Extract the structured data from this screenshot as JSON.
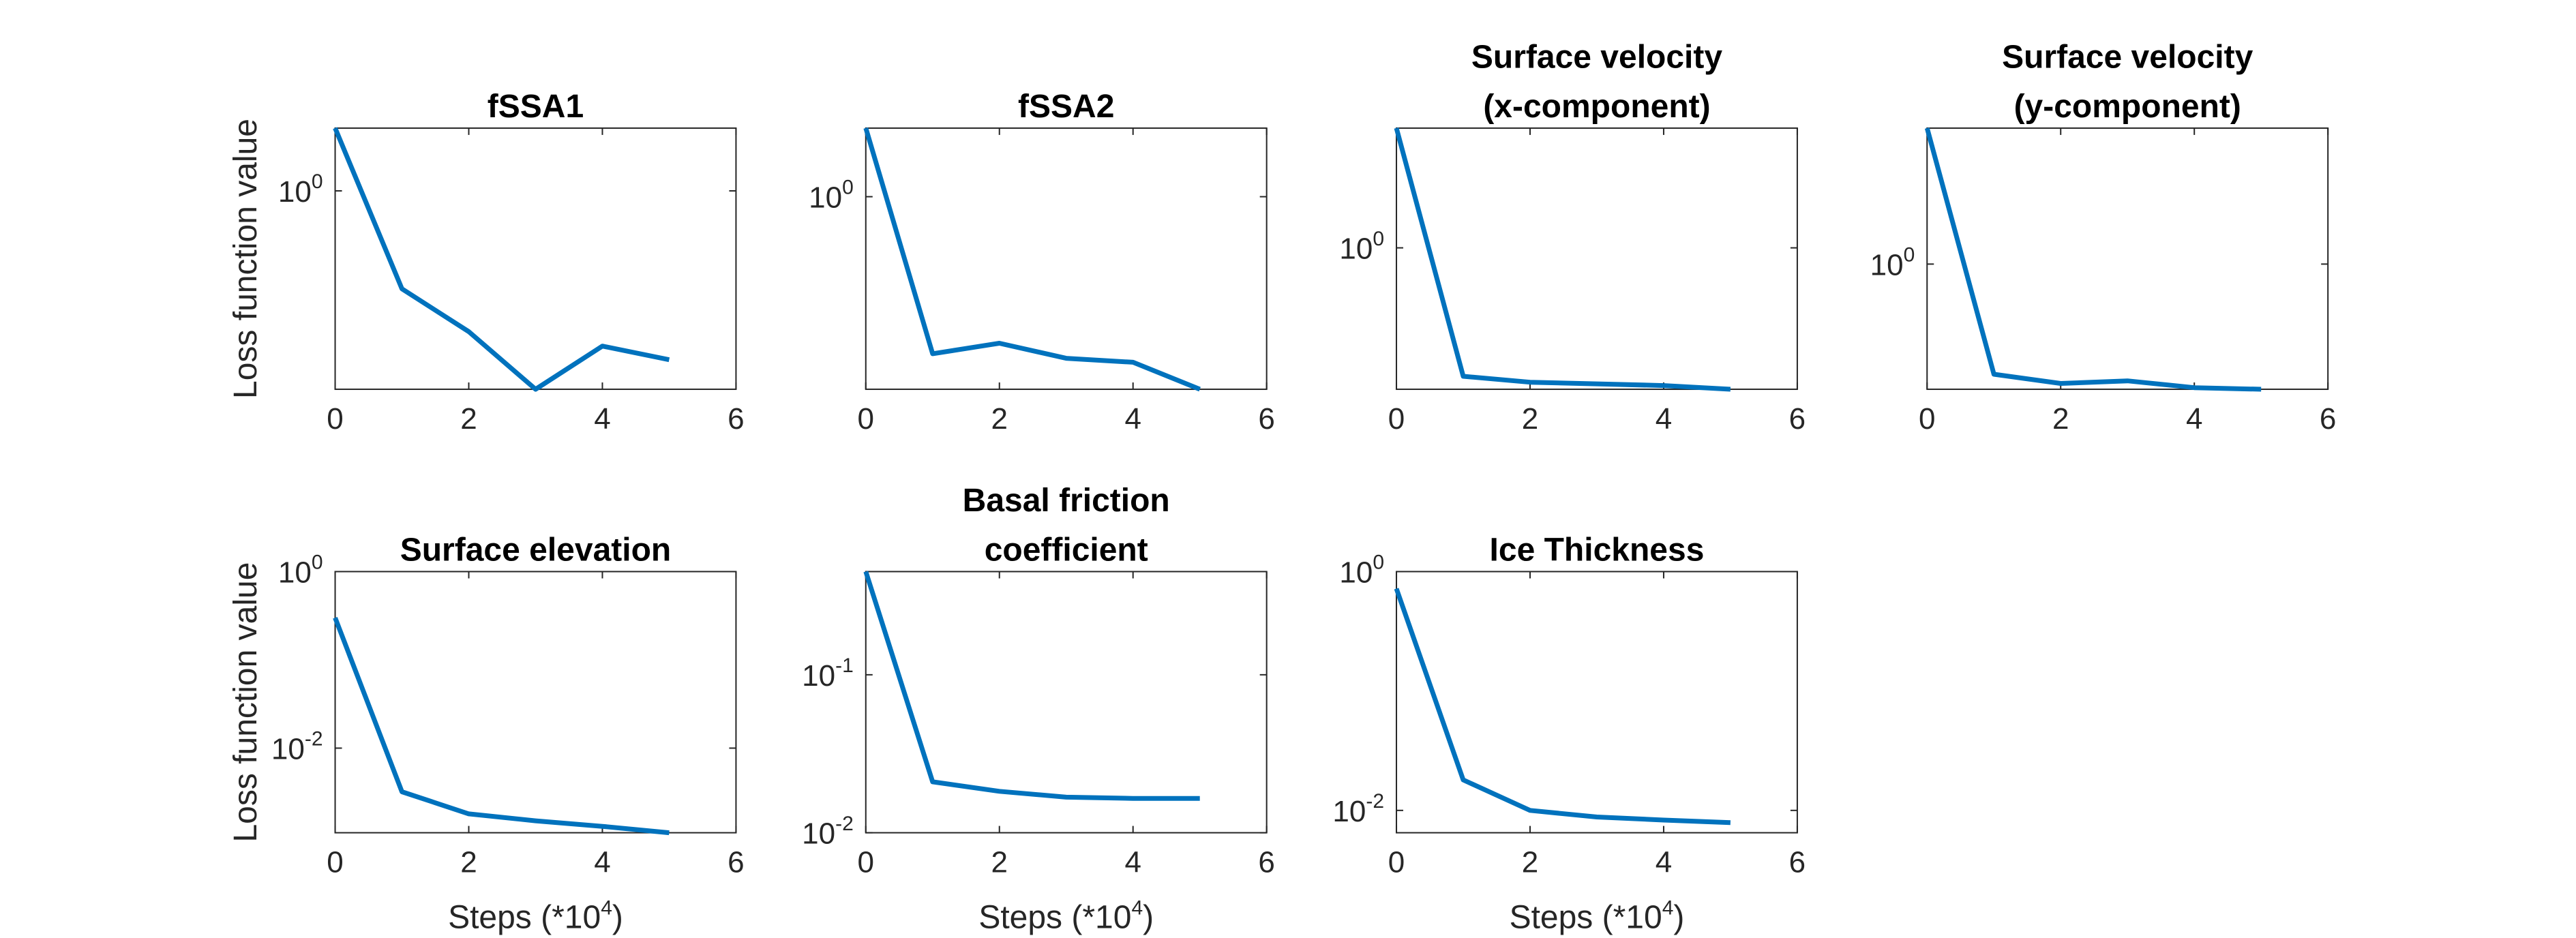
{
  "chart_data": [
    {
      "type": "line",
      "title": [
        "fSSA1"
      ],
      "ylabel": "Loss function value",
      "xlabel": "",
      "x": [
        0,
        1,
        2,
        3,
        4,
        5
      ],
      "series": [
        {
          "values": [
            3.0,
            0.18,
            0.085,
            0.031,
            0.066,
            0.052
          ],
          "color": "#0072BD"
        }
      ],
      "xlim": [
        0,
        6
      ],
      "xticks": [
        "0",
        "2",
        "4",
        "6"
      ],
      "ylim": [
        0.031,
        3.0
      ],
      "yscale": "log",
      "yticks": [
        {
          "value": 1,
          "label": "10",
          "exp": "0"
        }
      ],
      "grid": false
    },
    {
      "type": "line",
      "title": [
        "fSSA2"
      ],
      "ylabel": "",
      "xlabel": "",
      "x": [
        0,
        1,
        2,
        3,
        4,
        5
      ],
      "series": [
        {
          "values": [
            3.3,
            0.065,
            0.078,
            0.06,
            0.056,
            0.035
          ],
          "color": "#0072BD"
        }
      ],
      "xlim": [
        0,
        6
      ],
      "xticks": [
        "0",
        "2",
        "4",
        "6"
      ],
      "ylim": [
        0.035,
        3.3
      ],
      "yscale": "log",
      "yticks": [
        {
          "value": 1,
          "label": "10",
          "exp": "0"
        }
      ],
      "grid": false
    },
    {
      "type": "line",
      "title": [
        "Surface velocity",
        "(x-component)"
      ],
      "ylabel": "",
      "xlabel": "",
      "x": [
        0,
        1,
        2,
        3,
        4,
        5
      ],
      "series": [
        {
          "values": [
            30,
            0.026,
            0.022,
            0.021,
            0.02,
            0.018
          ],
          "color": "#0072BD"
        }
      ],
      "xlim": [
        0,
        6
      ],
      "xticks": [
        "0",
        "2",
        "4",
        "6"
      ],
      "ylim": [
        0.018,
        30
      ],
      "yscale": "log",
      "yticks": [
        {
          "value": 1,
          "label": "10",
          "exp": "0"
        }
      ],
      "grid": false
    },
    {
      "type": "line",
      "title": [
        "Surface velocity",
        "(y-component)"
      ],
      "ylabel": "",
      "xlabel": "",
      "x": [
        0,
        1,
        2,
        3,
        4,
        5
      ],
      "series": [
        {
          "values": [
            70,
            0.032,
            0.024,
            0.026,
            0.021,
            0.02
          ],
          "color": "#0072BD"
        }
      ],
      "xlim": [
        0,
        6
      ],
      "xticks": [
        "0",
        "2",
        "4",
        "6"
      ],
      "ylim": [
        0.02,
        70
      ],
      "yscale": "log",
      "yticks": [
        {
          "value": 1,
          "label": "10",
          "exp": "0"
        }
      ],
      "grid": false
    },
    {
      "type": "line",
      "title": [
        "Surface elevation"
      ],
      "ylabel": "Loss function value",
      "xlabel": "Steps (*10",
      "xlabel_exp": "4",
      "xlabel_end": ")",
      "x": [
        0,
        1,
        2,
        3,
        4,
        5
      ],
      "series": [
        {
          "values": [
            0.3,
            0.0032,
            0.0018,
            0.0015,
            0.0013,
            0.0011
          ],
          "color": "#0072BD"
        }
      ],
      "xlim": [
        0,
        6
      ],
      "xticks": [
        "0",
        "2",
        "4",
        "6"
      ],
      "ylim": [
        0.0011,
        1
      ],
      "yscale": "log",
      "yticks": [
        {
          "value": 0.01,
          "label": "10",
          "exp": "-2"
        },
        {
          "value": 1,
          "label": "10",
          "exp": "0"
        }
      ],
      "grid": false
    },
    {
      "type": "line",
      "title": [
        "Basal friction",
        "coefficient"
      ],
      "ylabel": "",
      "xlabel": "Steps (*10",
      "xlabel_exp": "4",
      "xlabel_end": ")",
      "x": [
        0,
        1,
        2,
        3,
        4,
        5
      ],
      "series": [
        {
          "values": [
            0.45,
            0.021,
            0.0183,
            0.0168,
            0.0165,
            0.0165
          ],
          "color": "#0072BD"
        }
      ],
      "xlim": [
        0,
        6
      ],
      "xticks": [
        "0",
        "2",
        "4",
        "6"
      ],
      "ylim": [
        0.01,
        0.45
      ],
      "yscale": "log",
      "yticks": [
        {
          "value": 0.01,
          "label": "10",
          "exp": "-2"
        },
        {
          "value": 0.1,
          "label": "10",
          "exp": "-1"
        }
      ],
      "grid": false
    },
    {
      "type": "line",
      "title": [
        "Ice Thickness"
      ],
      "ylabel": "",
      "xlabel": "Steps (*10",
      "xlabel_exp": "4",
      "xlabel_end": ")",
      "x": [
        0,
        1,
        2,
        3,
        4,
        5
      ],
      "series": [
        {
          "values": [
            0.72,
            0.018,
            0.01,
            0.0088,
            0.0083,
            0.0079
          ],
          "color": "#0072BD"
        }
      ],
      "xlim": [
        0,
        6
      ],
      "xticks": [
        "0",
        "2",
        "4",
        "6"
      ],
      "ylim": [
        0.0065,
        1
      ],
      "yscale": "log",
      "yticks": [
        {
          "value": 0.01,
          "label": "10",
          "exp": "-2"
        },
        {
          "value": 1,
          "label": "10",
          "exp": "0"
        }
      ],
      "grid": false
    }
  ]
}
